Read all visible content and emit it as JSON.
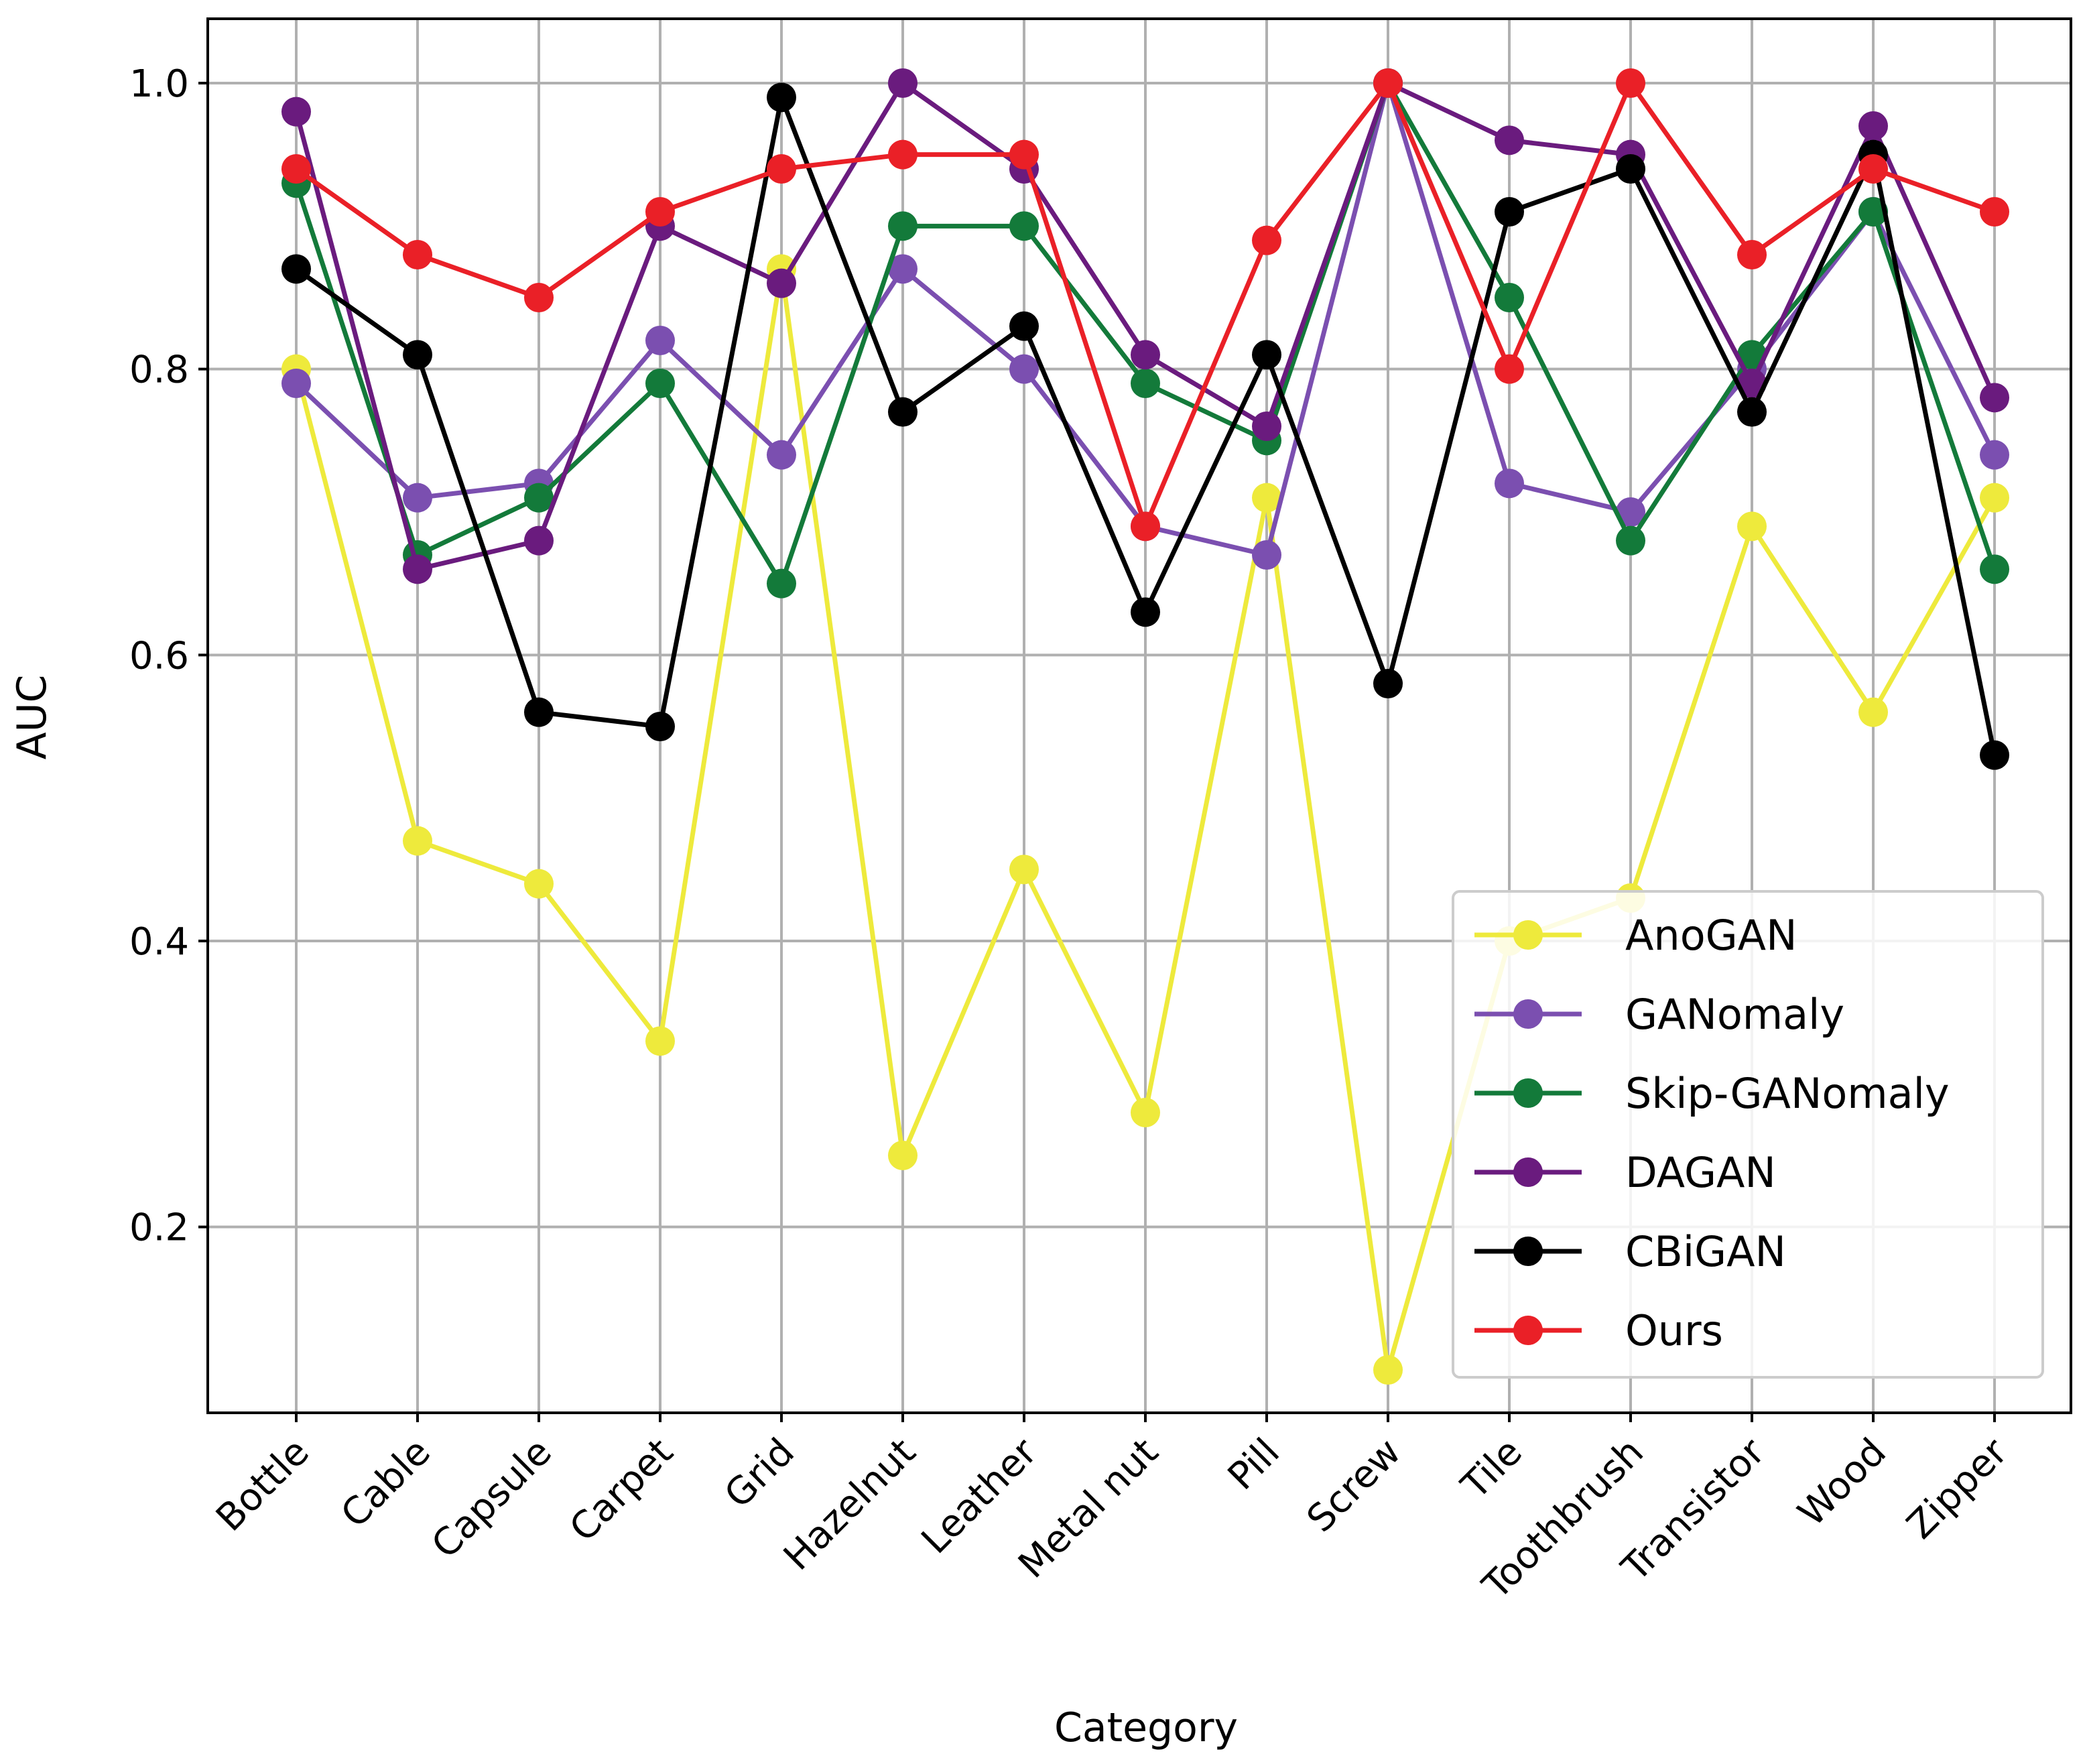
{
  "chart_data": {
    "type": "line",
    "title": "",
    "xlabel": "Category",
    "ylabel": "AUC",
    "categories": [
      "Bottle",
      "Cable",
      "Capsule",
      "Carpet",
      "Grid",
      "Hazelnut",
      "Leather",
      "Metal nut",
      "Pill",
      "Screw",
      "Tile",
      "Toothbrush",
      "Transistor",
      "Wood",
      "Zipper"
    ],
    "ylim": [
      0.07,
      1.045
    ],
    "yticks": [
      "0.2",
      "0.4",
      "0.6",
      "0.8",
      "1.0"
    ],
    "grid": true,
    "legend_position": "lower-right",
    "series": [
      {
        "name": "AnoGAN",
        "color": "#eeea3c",
        "values": [
          0.8,
          0.47,
          0.44,
          0.33,
          0.87,
          0.25,
          0.45,
          0.28,
          0.71,
          0.1,
          0.4,
          0.43,
          0.69,
          0.56,
          0.71
        ]
      },
      {
        "name": "GANomaly",
        "color": "#7b4fb0",
        "values": [
          0.79,
          0.71,
          0.72,
          0.82,
          0.74,
          0.87,
          0.8,
          0.69,
          0.67,
          1.0,
          0.72,
          0.7,
          0.8,
          0.91,
          0.74
        ]
      },
      {
        "name": "Skip-GANomaly",
        "color": "#137a3a",
        "values": [
          0.93,
          0.67,
          0.71,
          0.79,
          0.65,
          0.9,
          0.9,
          0.79,
          0.75,
          1.0,
          0.85,
          0.68,
          0.81,
          0.91,
          0.66
        ]
      },
      {
        "name": "DAGAN",
        "color": "#6a1b7e",
        "values": [
          0.98,
          0.66,
          0.68,
          0.9,
          0.86,
          1.0,
          0.94,
          0.81,
          0.76,
          1.0,
          0.96,
          0.95,
          0.79,
          0.97,
          0.78
        ]
      },
      {
        "name": "CBiGAN",
        "color": "#000000",
        "values": [
          0.87,
          0.81,
          0.56,
          0.55,
          0.99,
          0.77,
          0.83,
          0.63,
          0.81,
          0.58,
          0.91,
          0.94,
          0.77,
          0.95,
          0.53
        ]
      },
      {
        "name": "Ours",
        "color": "#ea2027",
        "values": [
          0.94,
          0.88,
          0.85,
          0.91,
          0.94,
          0.95,
          0.95,
          0.69,
          0.89,
          1.0,
          0.8,
          1.0,
          0.88,
          0.94,
          0.91
        ]
      }
    ]
  }
}
